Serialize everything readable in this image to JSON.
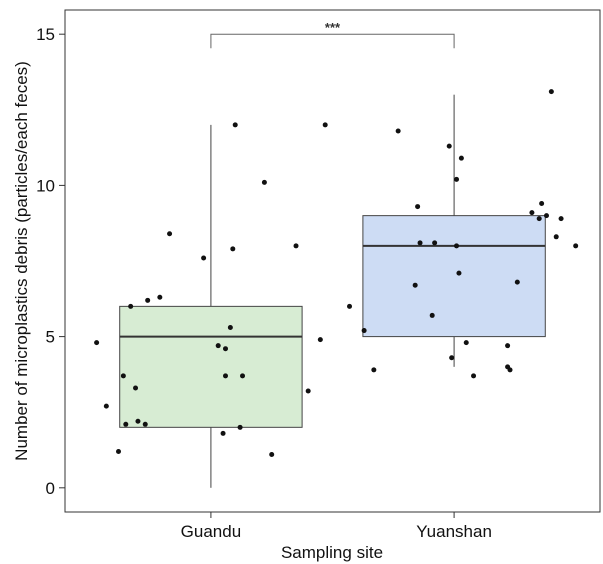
{
  "chart_data": {
    "type": "boxplot",
    "title": "",
    "xlabel": "Sampling site",
    "ylabel": "Number of microplastics debris (particles/each feces)",
    "categories": [
      "Guandu",
      "Yuanshan"
    ],
    "ylim": [
      -0.8,
      15.8
    ],
    "yticks": [
      0,
      5,
      10,
      15
    ],
    "grid": false,
    "legend": "none",
    "significance": {
      "between": [
        "Guandu",
        "Yuanshan"
      ],
      "label": "***"
    },
    "colors": {
      "Guandu": "#d7ecd3",
      "Yuanshan": "#cddcf4",
      "box_stroke": "#444444",
      "median": "#333333",
      "point": "#111111"
    },
    "boxes": [
      {
        "category": "Guandu",
        "min": 0,
        "q1": 2,
        "median": 5,
        "q3": 6,
        "max": 12,
        "points": [
          {
            "x": -0.47,
            "y": 4.8
          },
          {
            "x": -0.43,
            "y": 2.7
          },
          {
            "x": -0.38,
            "y": 1.2
          },
          {
            "x": -0.36,
            "y": 3.7
          },
          {
            "x": -0.35,
            "y": 2.1
          },
          {
            "x": -0.33,
            "y": 6.0
          },
          {
            "x": -0.31,
            "y": 3.3
          },
          {
            "x": -0.3,
            "y": 2.2
          },
          {
            "x": -0.27,
            "y": 2.1
          },
          {
            "x": -0.26,
            "y": 6.2
          },
          {
            "x": -0.21,
            "y": 6.3
          },
          {
            "x": -0.17,
            "y": 8.4
          },
          {
            "x": -0.03,
            "y": 7.6
          },
          {
            "x": 0.03,
            "y": 4.7
          },
          {
            "x": 0.05,
            "y": 1.8
          },
          {
            "x": 0.06,
            "y": 3.7
          },
          {
            "x": 0.08,
            "y": 5.3
          },
          {
            "x": 0.09,
            "y": 7.9
          },
          {
            "x": 0.1,
            "y": 12.0
          },
          {
            "x": 0.12,
            "y": 2.0
          },
          {
            "x": 0.13,
            "y": 3.7
          },
          {
            "x": 0.22,
            "y": 10.1
          },
          {
            "x": 0.25,
            "y": 1.1
          },
          {
            "x": 0.35,
            "y": 8.0
          },
          {
            "x": 0.4,
            "y": 3.2
          },
          {
            "x": 0.45,
            "y": 4.9
          },
          {
            "x": 0.47,
            "y": 12.0
          },
          {
            "x": 0.06,
            "y": 4.6
          }
        ]
      },
      {
        "category": "Yuanshan",
        "min": 4,
        "q1": 5,
        "median": 8,
        "q3": 9,
        "max": 13,
        "points": [
          {
            "x": -0.43,
            "y": 6.0
          },
          {
            "x": -0.37,
            "y": 5.2
          },
          {
            "x": -0.33,
            "y": 3.9
          },
          {
            "x": -0.23,
            "y": 11.8
          },
          {
            "x": -0.16,
            "y": 6.7
          },
          {
            "x": -0.15,
            "y": 9.3
          },
          {
            "x": -0.14,
            "y": 8.1
          },
          {
            "x": -0.09,
            "y": 5.7
          },
          {
            "x": -0.08,
            "y": 8.1
          },
          {
            "x": -0.02,
            "y": 11.3
          },
          {
            "x": -0.01,
            "y": 4.3
          },
          {
            "x": 0.01,
            "y": 8.0
          },
          {
            "x": 0.01,
            "y": 10.2
          },
          {
            "x": 0.02,
            "y": 7.1
          },
          {
            "x": 0.03,
            "y": 10.9
          },
          {
            "x": 0.05,
            "y": 4.8
          },
          {
            "x": 0.08,
            "y": 3.7
          },
          {
            "x": 0.22,
            "y": 4.7
          },
          {
            "x": 0.22,
            "y": 4.0
          },
          {
            "x": 0.23,
            "y": 3.9
          },
          {
            "x": 0.26,
            "y": 6.8
          },
          {
            "x": 0.32,
            "y": 9.1
          },
          {
            "x": 0.35,
            "y": 8.9
          },
          {
            "x": 0.36,
            "y": 9.4
          },
          {
            "x": 0.38,
            "y": 9.0
          },
          {
            "x": 0.4,
            "y": 13.1
          },
          {
            "x": 0.42,
            "y": 8.3
          },
          {
            "x": 0.44,
            "y": 8.9
          },
          {
            "x": 0.5,
            "y": 8.0
          }
        ]
      }
    ]
  }
}
